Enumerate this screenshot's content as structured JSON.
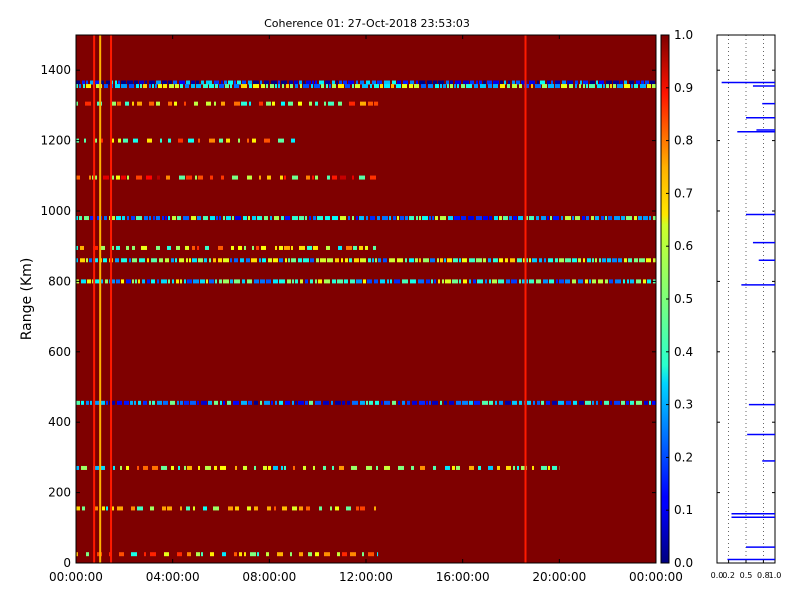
{
  "chart_data": [
    {
      "type": "heatmap",
      "title": "Coherence 01: 27-Oct-2018 23:53:03",
      "ylabel": "Range (Km)",
      "xlabel": "",
      "xlim": [
        "00:00:00",
        "24:00:00"
      ],
      "ylim": [
        0,
        1500
      ],
      "x_ticks": [
        "00:00:00",
        "04:00:00",
        "08:00:00",
        "12:00:00",
        "16:00:00",
        "20:00:00",
        "00:00:00"
      ],
      "y_ticks": [
        "0",
        "200",
        "400",
        "600",
        "800",
        "1000",
        "1200",
        "1400"
      ],
      "colormap": "jet",
      "colorbar": {
        "range": [
          0,
          1
        ],
        "ticks": [
          "0.0",
          "0.1",
          "0.2",
          "0.3",
          "0.4",
          "0.5",
          "0.6",
          "0.7",
          "0.8",
          "0.9",
          "1.0"
        ]
      },
      "background_value": 1.0,
      "vertical_features": [
        {
          "time_h": 0.75,
          "value": 0.85
        },
        {
          "time_h": 1.0,
          "value": 0.7
        },
        {
          "time_h": 1.45,
          "value": 0.85
        },
        {
          "time_h": 18.6,
          "value": 0.85
        }
      ],
      "range_features": [
        {
          "range_km": 1365,
          "value": 0.15,
          "extent_h": [
            0,
            24
          ]
        },
        {
          "range_km": 1355,
          "value": 0.45,
          "extent_h": [
            0,
            24
          ]
        },
        {
          "range_km": 1305,
          "value": 0.6,
          "extent_h": [
            0,
            12.5
          ]
        },
        {
          "range_km": 1200,
          "value": 0.6,
          "extent_h": [
            0,
            9.2
          ]
        },
        {
          "range_km": 1095,
          "value": 0.7,
          "extent_h": [
            0,
            12.5
          ]
        },
        {
          "range_km": 980,
          "value": 0.35,
          "extent_h": [
            0,
            24
          ]
        },
        {
          "range_km": 895,
          "value": 0.6,
          "extent_h": [
            0,
            12.5
          ]
        },
        {
          "range_km": 860,
          "value": 0.45,
          "extent_h": [
            0,
            24
          ]
        },
        {
          "range_km": 800,
          "value": 0.4,
          "extent_h": [
            0,
            24
          ]
        },
        {
          "range_km": 455,
          "value": 0.25,
          "extent_h": [
            0,
            24
          ]
        },
        {
          "range_km": 270,
          "value": 0.55,
          "extent_h": [
            0,
            20
          ]
        },
        {
          "range_km": 155,
          "value": 0.6,
          "extent_h": [
            0,
            12.5
          ]
        },
        {
          "range_km": 25,
          "value": 0.6,
          "extent_h": [
            0,
            12.5
          ]
        }
      ]
    },
    {
      "type": "line",
      "xlim": [
        0,
        1
      ],
      "ylim": [
        0,
        1500
      ],
      "x_ticks": [
        "0.0",
        "0.2",
        "0.5",
        "0.8",
        "1.0"
      ],
      "series": [
        {
          "segments": [
            {
              "range_km": 1365,
              "x": [
                0.08,
                1.0
              ]
            },
            {
              "range_km": 1355,
              "x": [
                0.62,
                1.0
              ]
            },
            {
              "range_km": 1305,
              "x": [
                0.78,
                1.0
              ]
            },
            {
              "range_km": 1265,
              "x": [
                0.5,
                1.0
              ]
            },
            {
              "range_km": 1230,
              "x": [
                0.68,
                1.0
              ]
            },
            {
              "range_km": 1225,
              "x": [
                0.35,
                1.0
              ]
            },
            {
              "range_km": 990,
              "x": [
                0.5,
                1.0
              ]
            },
            {
              "range_km": 910,
              "x": [
                0.62,
                1.0
              ]
            },
            {
              "range_km": 860,
              "x": [
                0.72,
                1.0
              ]
            },
            {
              "range_km": 790,
              "x": [
                0.42,
                1.0
              ]
            },
            {
              "range_km": 450,
              "x": [
                0.55,
                1.0
              ]
            },
            {
              "range_km": 365,
              "x": [
                0.52,
                1.0
              ]
            },
            {
              "range_km": 290,
              "x": [
                0.78,
                1.0
              ]
            },
            {
              "range_km": 140,
              "x": [
                0.25,
                1.0
              ]
            },
            {
              "range_km": 130,
              "x": [
                0.25,
                1.0
              ]
            },
            {
              "range_km": 45,
              "x": [
                0.5,
                1.0
              ]
            },
            {
              "range_km": 10,
              "x": [
                0.18,
                1.0
              ]
            }
          ]
        }
      ]
    }
  ]
}
